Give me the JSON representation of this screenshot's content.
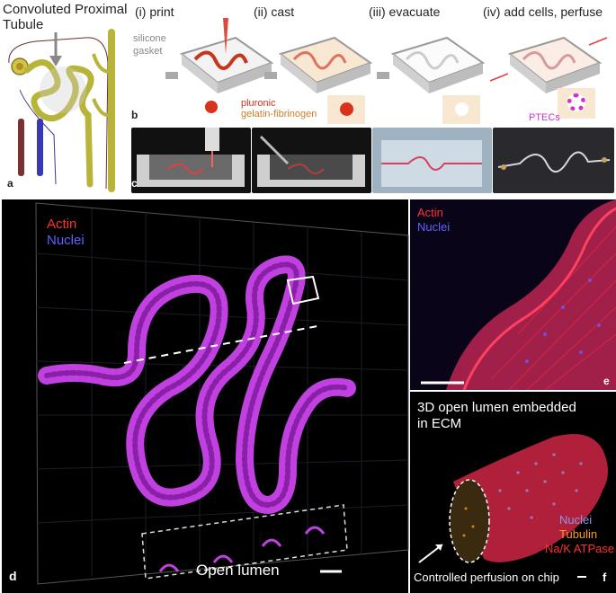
{
  "panel_a": {
    "title_line1": "Convoluted Proximal",
    "title_line2": "Tubule",
    "letter": "a"
  },
  "panel_b": {
    "steps": [
      "(i)  print",
      "(ii)  cast",
      "(iii)  evacuate",
      "(iv)  add cells, perfuse"
    ],
    "gasket_label_1": "silicone",
    "gasket_label_2": "gasket",
    "pluronic": "pluronic",
    "gelatin": "gelatin-fibrinogen",
    "ptecs": "PTECs",
    "letter": "b"
  },
  "panel_c": {
    "letter": "c"
  },
  "panel_d": {
    "actin": "Actin",
    "nuclei": "Nuclei",
    "open_lumen": "Open lumen",
    "letter": "d"
  },
  "panel_e": {
    "actin": "Actin",
    "nuclei": "Nuclei",
    "letter": "e"
  },
  "panel_f": {
    "title_line1": "3D open lumen embedded",
    "title_line2": "in ECM",
    "nuclei": "Nuclei",
    "tubulin": "Tubulin",
    "atpase": "Na/K ATPase",
    "caption": "Controlled perfusion on chip",
    "letter": "f"
  },
  "colors": {
    "actin_red": "#ff3030",
    "nuclei_blue": "#5a63ff",
    "tubule_magenta": "#c040e0",
    "pluronic_red": "#d8321c",
    "gelatin_orange": "#c7812a",
    "ptec_purple": "#cc33cc",
    "tubulin_orange": "#ff9a1a",
    "kidney_olive": "#b8b43a"
  }
}
